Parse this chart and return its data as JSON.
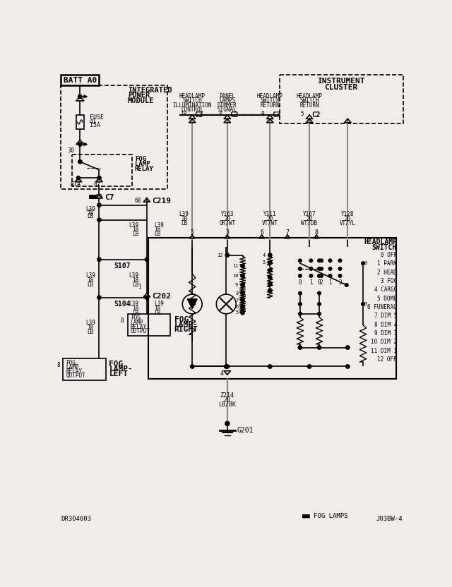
{
  "bg_color": "#f0ede8",
  "lc": "#000000",
  "gc": "#888888",
  "bottom_left": "DR304003",
  "bottom_right": "J03BW-4",
  "bottom_note": "■■ FOG LAMPS",
  "switch_labels": [
    "0 OFF",
    "1 PARK",
    "2 HEAD",
    "3 FOG",
    "4 CARGO",
    "5 DOME",
    "6 FUNERAL",
    "7 DIM 5",
    "8 DIM 4",
    "9 DIM 3",
    "10 DIM 2",
    "11 DIM 1",
    "12 OFF"
  ]
}
